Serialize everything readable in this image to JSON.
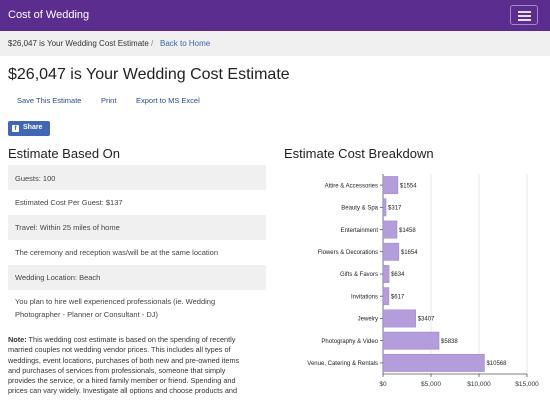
{
  "navbar": {
    "brand": "Cost of Wedding"
  },
  "breadcrumb": {
    "current": "$26,047 is Your Wedding Cost Estimate",
    "separator": "/",
    "back_link": "Back to Home"
  },
  "page": {
    "title": "$26,047 is Your Wedding Cost Estimate"
  },
  "actions": {
    "save": "Save This Estimate",
    "print": "Print",
    "export": "Export to MS Excel"
  },
  "share": {
    "label": "Share",
    "icon": "facebook-icon",
    "color": "#4267b2"
  },
  "estimate": {
    "heading": "Estimate Based On",
    "rows": [
      "Guests: 100",
      "Estimated Cost Per Guest: $137",
      "Travel: Within 25 miles of home",
      "The ceremony and reception was/will be at the same location",
      "Wedding Location: Beach",
      "You plan to hire well experienced professionals (ie. Wedding",
      "Photographer - Planner or Consultant - DJ)"
    ]
  },
  "note": {
    "label": "Note:",
    "lines": [
      " This wedding cost estimate is based on the spending of recently",
      "married couples not wedding vendor prices. This includes all types of",
      "weddings, event locations, purchases of both new and pre-owned items",
      "and purchases of services from professionals, someone that simply",
      "provides the service, or a hired family member or friend. Spending and",
      "prices can vary widely. Investigate all options and choose products and"
    ]
  },
  "breakdown": {
    "heading": "Estimate Cost Breakdown"
  },
  "colors": {
    "navbar": "#5b2d8e",
    "bar": "#b39ddb",
    "bar_stroke": "#9c83cc",
    "link": "#2e4a8f"
  },
  "chart_data": {
    "type": "bar",
    "orientation": "horizontal",
    "categories": [
      "Attire & Accessories",
      "Beauty & Spa",
      "Entertainment",
      "Flowers & Decorations",
      "Gifts & Favors",
      "Invitations",
      "Jewelry",
      "Photography & Video",
      "Venue, Catering & Rentals"
    ],
    "values": [
      1554,
      317,
      1458,
      1654,
      634,
      617,
      3407,
      5838,
      10568
    ],
    "data_labels": [
      "$1554",
      "$317",
      "$1458",
      "$1654",
      "$634",
      "$617",
      "$3407",
      "$5838",
      "$10568"
    ],
    "xlim": [
      0,
      15000
    ],
    "xticks": [
      0,
      5000,
      10000,
      15000
    ],
    "xtick_labels": [
      "$0",
      "$5,000",
      "$10,000",
      "$15,000"
    ],
    "grid": true
  }
}
